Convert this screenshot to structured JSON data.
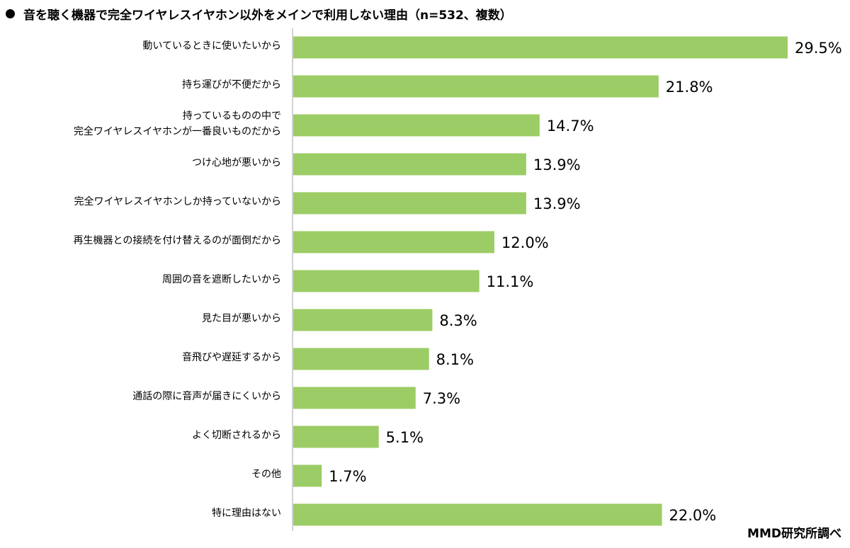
{
  "title": "音を聴く機器で完全ワイヤレスイヤホン以外をメインで利用しない理由（n=532、複数）",
  "source": "MMD研究所調べ",
  "colors": {
    "bar": "#9ccc65",
    "axis": "#a6a6a6",
    "text": "#000000"
  },
  "chart_data": {
    "type": "bar",
    "orientation": "horizontal",
    "title": "音を聴く機器で完全ワイヤレスイヤホン以外をメインで利用しない理由（n=532、複数）",
    "unit": "%",
    "categories": [
      "動いているときに使いたいから",
      "持ち運びが不便だから",
      "持っているものの中で\n完全ワイヤレスイヤホンが一番良いものだから",
      "つけ心地が悪いから",
      "完全ワイヤレスイヤホンしか持っていないから",
      "再生機器との接続を付け替えるのが面倒だから",
      "周囲の音を遮断したいから",
      "見た目が悪いから",
      "音飛びや遅延するから",
      "通話の際に音声が届きにくいから",
      "よく切断されるから",
      "その他",
      "特に理由はない"
    ],
    "values": [
      29.5,
      21.8,
      14.7,
      13.9,
      13.9,
      12.0,
      11.1,
      8.3,
      8.1,
      7.3,
      5.1,
      1.7,
      22.0
    ],
    "value_labels": [
      "29.5%",
      "21.8%",
      "14.7%",
      "13.9%",
      "13.9%",
      "12.0%",
      "11.1%",
      "8.3%",
      "8.1%",
      "7.3%",
      "5.1%",
      "1.7%",
      "22.0%"
    ],
    "xlim": [
      0,
      30
    ],
    "grid": false
  }
}
